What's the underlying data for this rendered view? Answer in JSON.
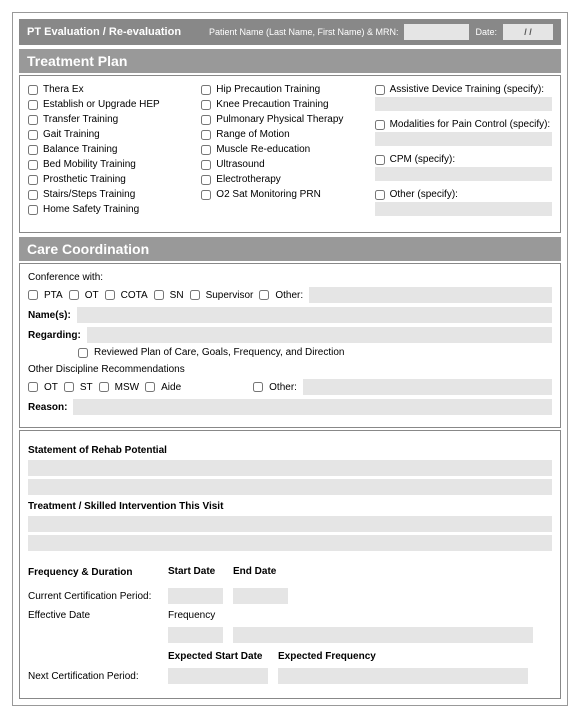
{
  "header": {
    "title": "PT Evaluation / Re-evaluation",
    "patient_label": "Patient Name (Last Name, First Name) & MRN:",
    "date_label": "Date:",
    "date_sep": "/     /"
  },
  "treatment_plan": {
    "title": "Treatment Plan",
    "col1": [
      "Thera Ex",
      "Establish or Upgrade HEP",
      "Transfer Training",
      "Gait Training",
      "Balance Training",
      "Bed Mobility Training",
      "Prosthetic Training",
      "Stairs/Steps Training",
      "Home Safety Training"
    ],
    "col2": [
      "Hip Precaution Training",
      "Knee Precaution Training",
      "Pulmonary Physical Therapy",
      "Range of Motion",
      "Muscle Re-education",
      "Ultrasound",
      "Electrotherapy",
      "O2 Sat Monitoring PRN"
    ],
    "col3": [
      "Assistive Device Training (specify):",
      "Modalities for Pain Control (specify):",
      "CPM (specify):",
      "Other (specify):"
    ]
  },
  "care": {
    "title": "Care Coordination",
    "conference_label": "Conference with:",
    "conf_options": [
      "PTA",
      "OT",
      "COTA",
      "SN",
      "Supervisor"
    ],
    "other_label": "Other:",
    "names_label": "Name(s):",
    "regarding_label": "Regarding:",
    "reviewed_label": "Reviewed Plan of Care, Goals, Frequency, and Direction",
    "other_disc_label": "Other Discipline Recommendations",
    "disc_options": [
      "OT",
      "ST",
      "MSW",
      "Aide"
    ],
    "reason_label": "Reason:"
  },
  "rehab": {
    "statement_label": "Statement of Rehab Potential",
    "treatment_label": "Treatment / Skilled Intervention This Visit",
    "freq_dur_label": "Frequency & Duration",
    "start_date": "Start Date",
    "end_date": "End Date",
    "current_cert": "Current Certification Period:",
    "effective_date": "Effective Date",
    "frequency": "Frequency",
    "exp_start": "Expected Start Date",
    "exp_freq": "Expected Frequency",
    "next_cert": "Next Certification Period:"
  }
}
